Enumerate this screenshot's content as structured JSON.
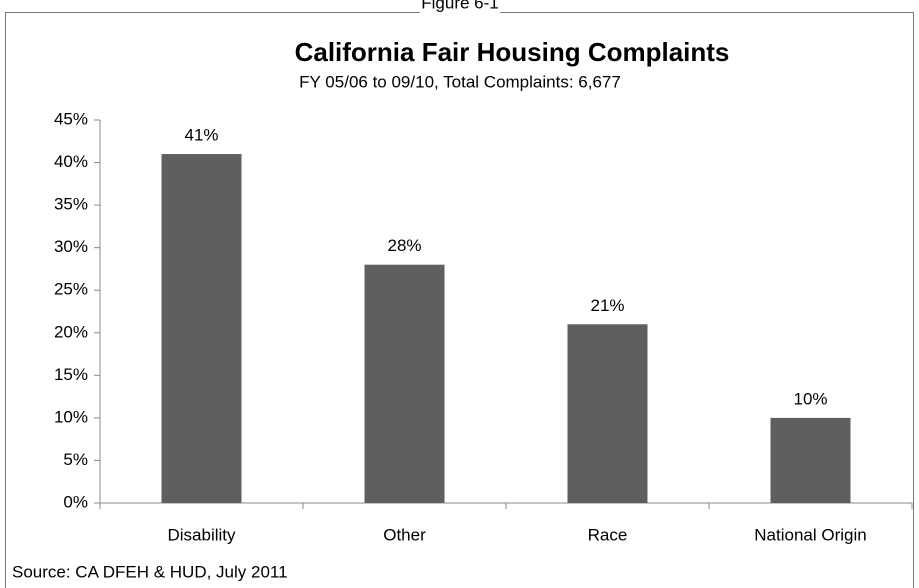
{
  "chart_data": {
    "type": "bar",
    "caption": "Figure 6-1",
    "title": "California Fair Housing Complaints",
    "subtitle": "FY 05/06 to 09/10, Total Complaints: 6,677",
    "source": "Source: CA DFEH & HUD, July 2011",
    "categories": [
      "Disability",
      "Other",
      "Race",
      "National Origin"
    ],
    "values": [
      41,
      28,
      21,
      10
    ],
    "value_labels": [
      "41%",
      "28%",
      "21%",
      "10%"
    ],
    "color": "#5f5f5f",
    "ylim": [
      0,
      45
    ],
    "yticks": [
      {
        "value": 0,
        "label": "0%"
      },
      {
        "value": 5,
        "label": "5%"
      },
      {
        "value": 10,
        "label": "10%"
      },
      {
        "value": 15,
        "label": "15%"
      },
      {
        "value": 20,
        "label": "20%"
      },
      {
        "value": 25,
        "label": "25%"
      },
      {
        "value": 30,
        "label": "30%"
      },
      {
        "value": 35,
        "label": "35%"
      },
      {
        "value": 40,
        "label": "40%"
      },
      {
        "value": 45,
        "label": "45%"
      }
    ],
    "grid": false
  }
}
